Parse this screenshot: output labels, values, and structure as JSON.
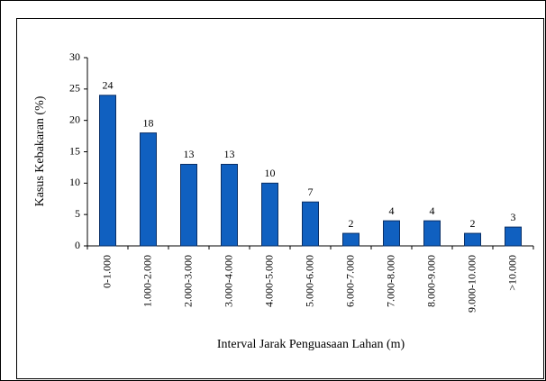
{
  "chart_data": {
    "type": "bar",
    "categories": [
      "0-1.000",
      "1.000-2.000",
      "2.000-3.000",
      "3.000-4.000",
      "4.000-5.000",
      "5.000-6.000",
      "6.000-7.000",
      "7.000-8.000",
      "8.000-9.000",
      "9.000-10.000",
      ">10.000"
    ],
    "values": [
      24,
      18,
      13,
      13,
      10,
      7,
      2,
      4,
      4,
      2,
      3
    ],
    "color": "#1060c0",
    "x_label": "Interval Jarak Penguasaan Lahan (m)",
    "y_label": "Kasus Kebakaran (%)",
    "ylim": [
      0,
      30
    ],
    "yticks": [
      0,
      5,
      10,
      15,
      20,
      25,
      30
    ]
  }
}
